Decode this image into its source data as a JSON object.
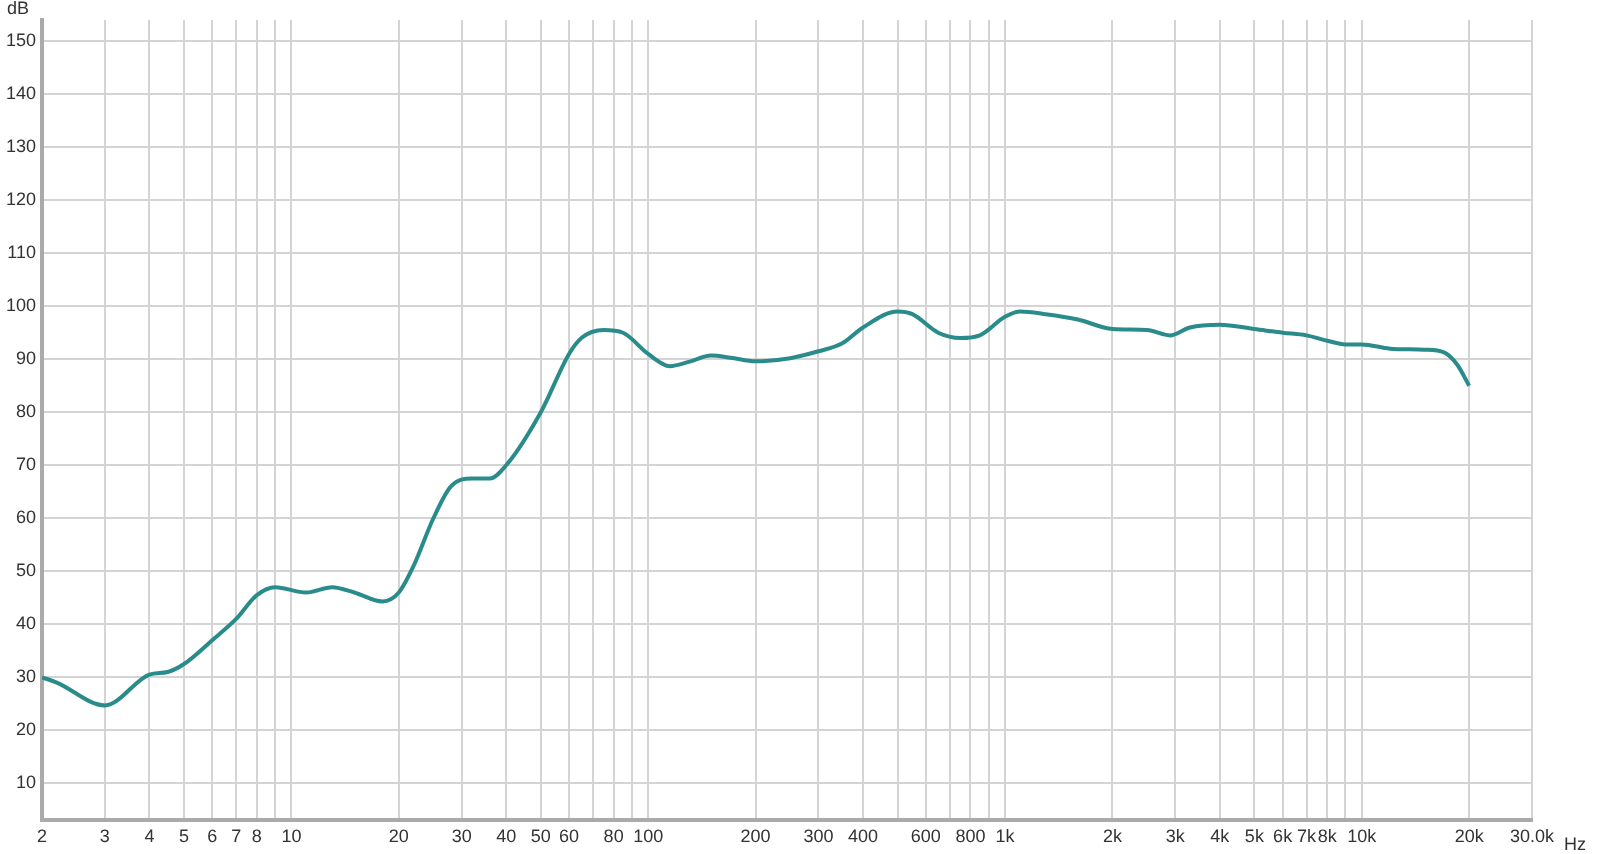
{
  "chart_data": {
    "type": "line",
    "xlabel": "Hz",
    "ylabel": "dB",
    "log": "x",
    "grid": true,
    "legend": false,
    "marker": "none",
    "line_style": "solid",
    "xlim": [
      2,
      30000
    ],
    "ylim": [
      3,
      154
    ],
    "xticks": [
      2,
      3,
      4,
      5,
      6,
      7,
      8,
      {
        "value": 9,
        "label": null
      },
      10,
      20,
      30,
      40,
      50,
      60,
      {
        "value": 70,
        "label": null
      },
      80,
      {
        "value": 90,
        "label": null
      },
      100,
      200,
      300,
      400,
      {
        "value": 500,
        "label": null
      },
      600,
      {
        "value": 700,
        "label": null
      },
      800,
      {
        "value": 900,
        "label": null
      },
      {
        "value": 1000,
        "label": "1k"
      },
      {
        "value": 2000,
        "label": "2k"
      },
      {
        "value": 3000,
        "label": "3k"
      },
      {
        "value": 4000,
        "label": "4k"
      },
      {
        "value": 5000,
        "label": "5k"
      },
      {
        "value": 6000,
        "label": "6k"
      },
      {
        "value": 7000,
        "label": "7k"
      },
      {
        "value": 8000,
        "label": "8k"
      },
      {
        "value": 9000,
        "label": null
      },
      {
        "value": 10000,
        "label": "10k"
      },
      {
        "value": 20000,
        "label": "20k"
      },
      {
        "value": 30000,
        "label": "30.0k"
      }
    ],
    "yticks": [
      10,
      20,
      30,
      40,
      50,
      60,
      70,
      80,
      90,
      100,
      110,
      120,
      130,
      140,
      150
    ],
    "series": [
      {
        "color": "#2a8b8b",
        "x": [
          2,
          2.2,
          3,
          4,
          4.5,
          5,
          6,
          7,
          8,
          9,
          11,
          13,
          15,
          18,
          20,
          22,
          25,
          28,
          32,
          36,
          40,
          50,
          60,
          65,
          75,
          85,
          100,
          115,
          130,
          150,
          170,
          200,
          250,
          300,
          350,
          400,
          500,
          550,
          650,
          750,
          850,
          1000,
          1100,
          1300,
          1600,
          2000,
          2500,
          2900,
          3300,
          4000,
          5000,
          6000,
          7000,
          8000,
          9000,
          10000,
          12000,
          15000,
          17000,
          18500,
          20000
        ],
        "values": [
          30,
          29,
          24.7,
          30.5,
          31,
          32.5,
          37,
          41,
          45.5,
          47,
          46,
          47,
          46,
          44.3,
          46,
          51,
          60,
          66,
          67.5,
          67.5,
          70,
          80,
          91,
          94,
          95.5,
          95,
          91,
          88.7,
          89.5,
          90.7,
          90.3,
          89.6,
          90.2,
          91.5,
          93,
          96,
          99,
          98.5,
          95,
          94,
          94.5,
          98,
          99,
          98.5,
          97.5,
          95.7,
          95.5,
          94.5,
          96,
          96.5,
          95.7,
          95,
          94.5,
          93.5,
          92.8,
          92.8,
          92,
          91.8,
          91.3,
          89,
          85
        ]
      }
    ]
  }
}
